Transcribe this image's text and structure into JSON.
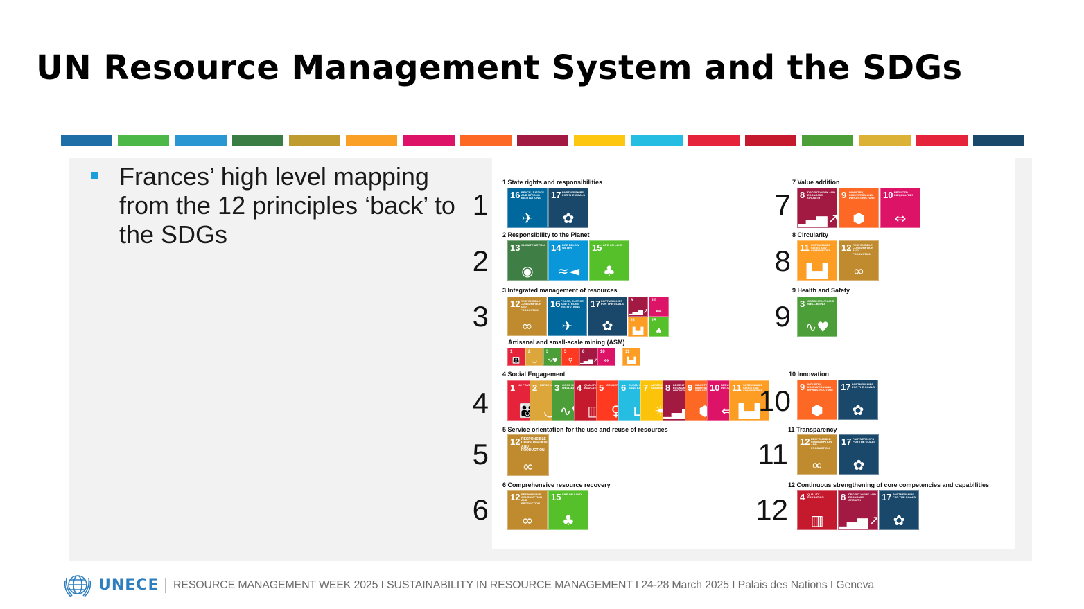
{
  "slide": {
    "title": "UN Resource Management System and the SDGs",
    "bullet": "Frances’ high level mapping from the 12 principles ‘back’ to the SDGs"
  },
  "stripe_colors": [
    "#1e6fa8",
    "#4cb848",
    "#2a96d2",
    "#3a7d44",
    "#bf9b30",
    "#fba026",
    "#dd1367",
    "#fd6925",
    "#a21942",
    "#fdc70f",
    "#26bde2",
    "#e5243b",
    "#c5192d",
    "#4c9f38",
    "#dcb236",
    "#e5243b",
    "#19486a"
  ],
  "sdg_colors": {
    "1": "#e5243b",
    "2": "#dda63a",
    "3": "#4c9f38",
    "4": "#c5192d",
    "5": "#ff3a21",
    "6": "#26bde2",
    "7": "#fcc30b",
    "8": "#a21942",
    "9": "#fd6925",
    "10": "#dd1367",
    "11": "#fd9d24",
    "12": "#bf8b2e",
    "13": "#3f7e44",
    "14": "#0a97d9",
    "15": "#56c02b",
    "16": "#00689d",
    "17": "#19486a"
  },
  "sdg_names": {
    "1": "No poverty",
    "2": "Zero hunger",
    "3": "Good health and well-being",
    "4": "Quality education",
    "5": "Gender equality",
    "6": "Clean water and sanitation",
    "7": "Affordable and clean energy",
    "8": "Decent work and economic growth",
    "9": "Industry, innovation and infrastructure",
    "10": "Reduced inequalities",
    "11": "Sustainable cities and communities",
    "12": "Responsible consumption and production",
    "13": "Climate action",
    "14": "Life below water",
    "15": "Life on land",
    "16": "Peace, justice and strong institutions",
    "17": "Partnerships for the goals"
  },
  "sdg_icons": {
    "1": "person-family-icon",
    "2": "bowl-icon",
    "3": "heartbeat-icon",
    "4": "book-icon",
    "5": "gender-symbol-icon",
    "6": "water-glass-icon",
    "7": "sun-power-icon",
    "8": "growth-chart-icon",
    "9": "cubes-icon",
    "10": "equals-arrows-icon",
    "11": "city-buildings-icon",
    "12": "infinity-loop-icon",
    "13": "eye-globe-icon",
    "14": "fish-icon",
    "15": "tree-icon",
    "16": "dove-gavel-icon",
    "17": "flower-rings-icon"
  },
  "principles": [
    {
      "num": "1",
      "label": "1 State rights and responsibilities",
      "sdgs": [
        "16",
        "17"
      ]
    },
    {
      "num": "2",
      "label": "2 Responsibility to the Planet",
      "sdgs": [
        "13",
        "14",
        "15"
      ]
    },
    {
      "num": "3",
      "label": "3 Integrated management of resources",
      "sdgs": [
        "12",
        "16",
        "17"
      ],
      "mini": [
        "8",
        "10",
        "11",
        "15"
      ],
      "sub_label": "Artisanal and small-scale mining (ASM)",
      "sub_sdgs": [
        "1",
        "2",
        "3",
        "5",
        "8",
        "10",
        "11"
      ]
    },
    {
      "num": "4",
      "label": "4 Social Engagement",
      "sdgs": [
        "1",
        "2",
        "3",
        "4",
        "5",
        "6",
        "7",
        "8",
        "9",
        "10",
        "11"
      ]
    },
    {
      "num": "5",
      "label": "5 Service orientation for the use and reuse of resources",
      "sdgs": [
        "12"
      ]
    },
    {
      "num": "6",
      "label": "6 Comprehensive resource recovery",
      "sdgs": [
        "12",
        "15"
      ]
    },
    {
      "num": "7",
      "label": "7 Value addition",
      "sdgs": [
        "8",
        "9",
        "10"
      ]
    },
    {
      "num": "8",
      "label": "8 Circularity",
      "sdgs": [
        "11",
        "12"
      ]
    },
    {
      "num": "9",
      "label": "9 Health and Safety",
      "sdgs": [
        "3"
      ]
    },
    {
      "num": "10",
      "label": "10 Innovation",
      "sdgs": [
        "9",
        "17"
      ]
    },
    {
      "num": "11",
      "label": "11 Transparency",
      "sdgs": [
        "12",
        "17"
      ]
    },
    {
      "num": "12",
      "label": "12 Continuous strengthening of core competencies and capabilities",
      "sdgs": [
        "4",
        "8",
        "17"
      ]
    }
  ],
  "footer": {
    "logo": "UNECE",
    "text": "RESOURCE MANAGEMENT WEEK 2025   I   SUSTAINABILITY IN RESOURCE MANAGEMENT   I   24-28 March 2025   I   Palais des Nations   I   Geneva"
  }
}
